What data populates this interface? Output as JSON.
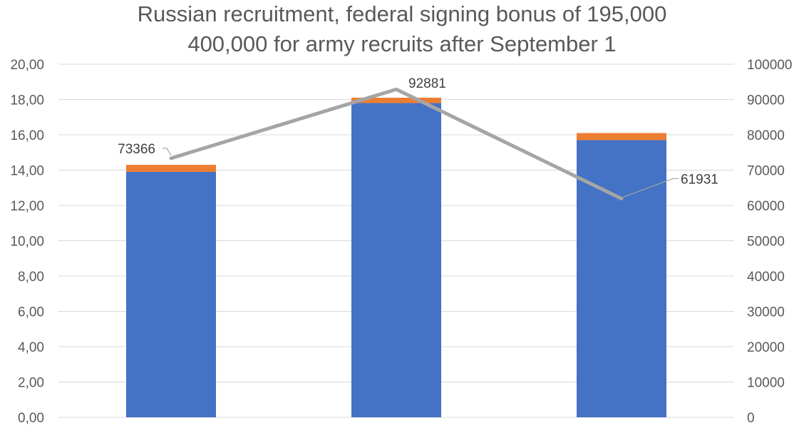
{
  "title": {
    "line1": "Russian recruitment, federal signing bonus of 195,000",
    "line2": "400,000 for army recruits after September 1"
  },
  "chart_data": {
    "type": "bar",
    "title": "Russian recruitment, federal signing bonus of 195,000 400,000 for army recruits after September 1",
    "categories": [
      "",
      "",
      ""
    ],
    "y_left": {
      "range": [
        0,
        20
      ],
      "ticks": [
        "0,00",
        "2,00",
        "4,00",
        "6,00",
        "8,00",
        "10,00",
        "12,00",
        "14,00",
        "16,00",
        "18,00",
        "20,00"
      ]
    },
    "y_right": {
      "range": [
        0,
        100000
      ],
      "ticks": [
        "0",
        "10000",
        "20000",
        "30000",
        "40000",
        "50000",
        "60000",
        "70000",
        "80000",
        "90000",
        "100000"
      ]
    },
    "series": [
      {
        "type": "stacked-bar",
        "axis": "left",
        "color": "#4472C4",
        "values": [
          13.9,
          17.8,
          15.7
        ]
      },
      {
        "type": "stacked-bar",
        "axis": "left",
        "color": "#ED7D31",
        "values": [
          0.4,
          0.3,
          0.4
        ]
      },
      {
        "type": "line",
        "axis": "right",
        "color": "#A5A5A5",
        "values": [
          73366,
          92881,
          61931
        ],
        "data_labels": [
          "73366",
          "92881",
          "61931"
        ]
      }
    ],
    "grid": true,
    "legend": "none"
  }
}
